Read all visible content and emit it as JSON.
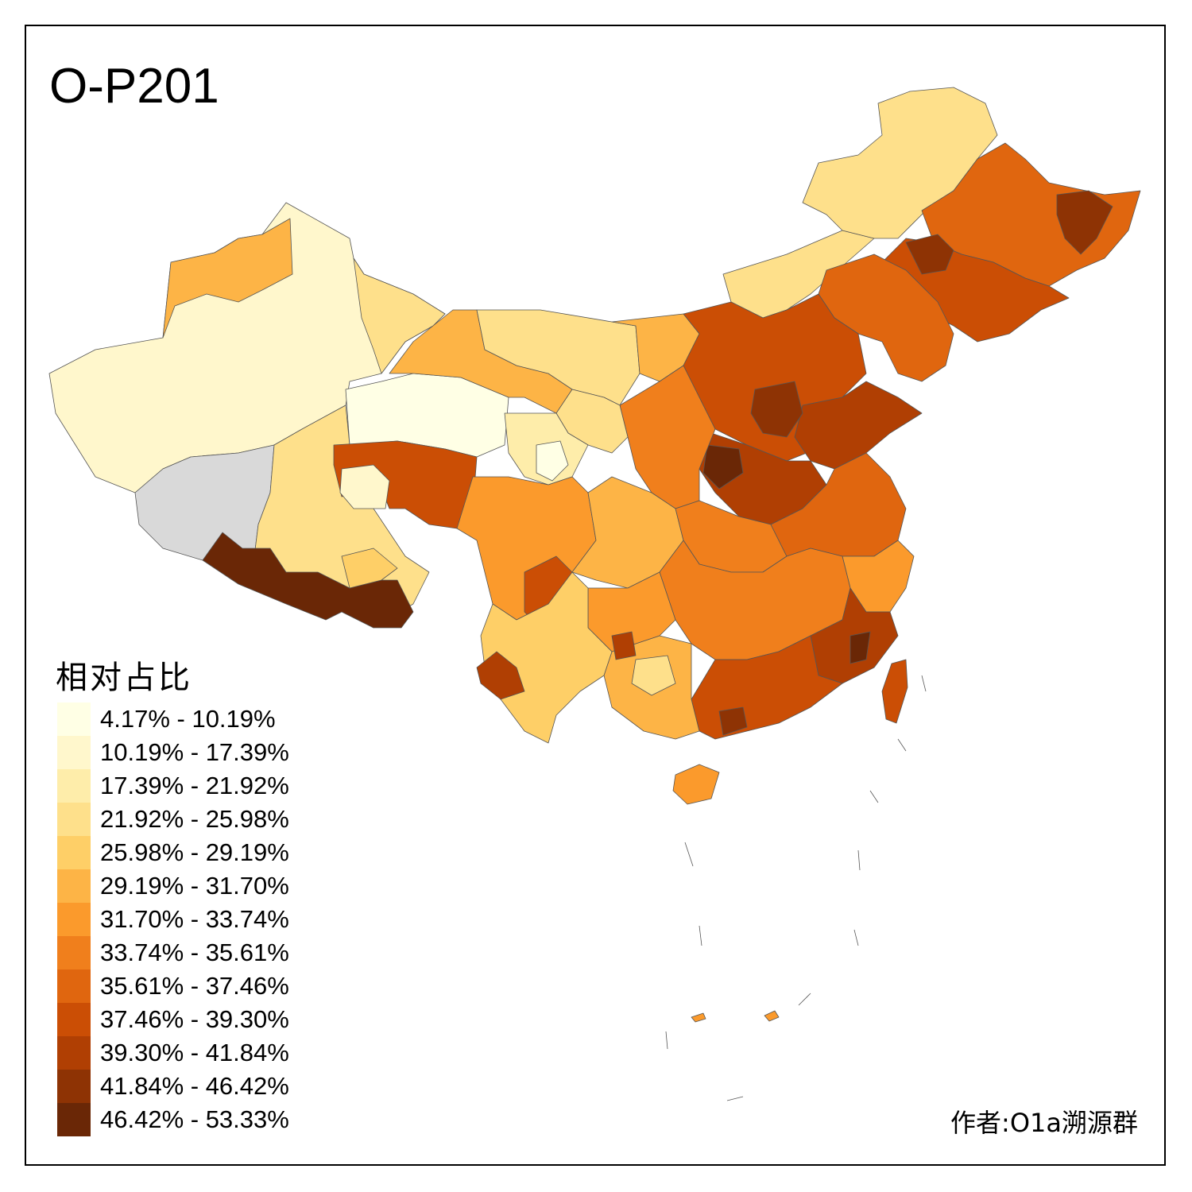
{
  "title": "O-P201",
  "legend": {
    "title": "相对占比",
    "bins": [
      {
        "label": "4.17% - 10.19%",
        "color": "#FFFFE5"
      },
      {
        "label": "10.19% - 17.39%",
        "color": "#FFF7CC"
      },
      {
        "label": "17.39% - 21.92%",
        "color": "#FEEDAA"
      },
      {
        "label": "21.92% - 25.98%",
        "color": "#FEE08B"
      },
      {
        "label": "25.98% - 29.19%",
        "color": "#FECF67"
      },
      {
        "label": "29.19% - 31.70%",
        "color": "#FDB446"
      },
      {
        "label": "31.70% - 33.74%",
        "color": "#FB9A2C"
      },
      {
        "label": "33.74% - 35.61%",
        "color": "#F07F1C"
      },
      {
        "label": "35.61% - 37.46%",
        "color": "#E0660F"
      },
      {
        "label": "37.46% - 39.30%",
        "color": "#CB4E05"
      },
      {
        "label": "39.30% - 41.84%",
        "color": "#B03F03"
      },
      {
        "label": "41.84% - 46.42%",
        "color": "#8E3304"
      },
      {
        "label": "46.42% - 53.33%",
        "color": "#6A2706"
      }
    ]
  },
  "no_data_color": "#D9D9D9",
  "author": "作者:O1a溯源群"
}
